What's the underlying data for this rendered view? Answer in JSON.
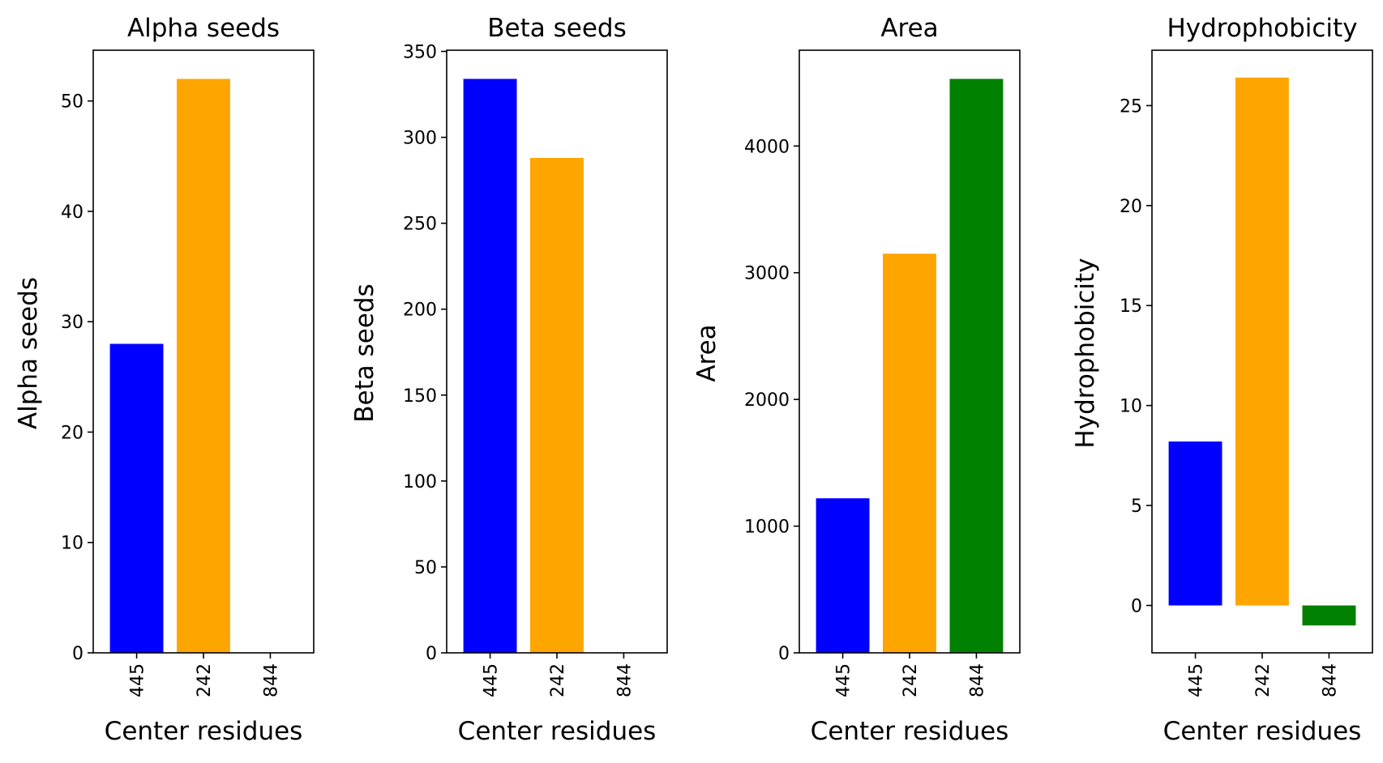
{
  "chart_data": [
    {
      "type": "bar",
      "title": "Alpha seeds",
      "xlabel": "Center residues",
      "ylabel": "Alpha seeds",
      "categories": [
        "445",
        "242",
        "844"
      ],
      "values": [
        28,
        52,
        0
      ],
      "colors": [
        "#0000ff",
        "#ffa500",
        "#008000"
      ],
      "ylim": [
        0,
        54.6
      ],
      "yticks": [
        0,
        10,
        20,
        30,
        40,
        50
      ],
      "grid": false
    },
    {
      "type": "bar",
      "title": "Beta seeds",
      "xlabel": "Center residues",
      "ylabel": "Beta seeds",
      "categories": [
        "445",
        "242",
        "844"
      ],
      "values": [
        334,
        288,
        0
      ],
      "colors": [
        "#0000ff",
        "#ffa500",
        "#008000"
      ],
      "ylim": [
        0,
        350.7
      ],
      "yticks": [
        0,
        50,
        100,
        150,
        200,
        250,
        300,
        350
      ],
      "grid": false
    },
    {
      "type": "bar",
      "title": "Area",
      "xlabel": "Center residues",
      "ylabel": "Area",
      "categories": [
        "445",
        "242",
        "844"
      ],
      "values": [
        1220,
        3150,
        4530
      ],
      "colors": [
        "#0000ff",
        "#ffa500",
        "#008000"
      ],
      "ylim": [
        0,
        4756
      ],
      "yticks": [
        0,
        1000,
        2000,
        3000,
        4000
      ],
      "grid": false
    },
    {
      "type": "bar",
      "title": "Hydrophobicity",
      "xlabel": "Center residues",
      "ylabel": "Hydrophobicity",
      "categories": [
        "445",
        "242",
        "844"
      ],
      "values": [
        8.2,
        26.4,
        -1.0
      ],
      "colors": [
        "#0000ff",
        "#ffa500",
        "#008000"
      ],
      "ylim": [
        -2.37,
        27.77
      ],
      "yticks": [
        0,
        5,
        10,
        15,
        20,
        25
      ],
      "grid": false
    }
  ]
}
